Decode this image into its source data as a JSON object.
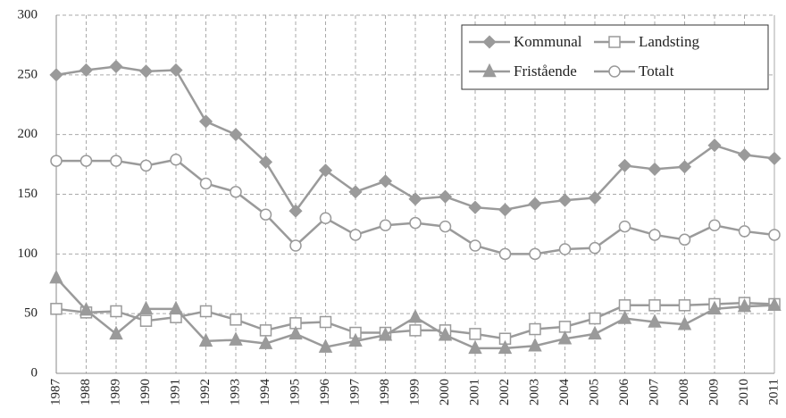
{
  "chart_data": {
    "type": "line",
    "categories": [
      "1987",
      "1988",
      "1989",
      "1990",
      "1991",
      "1992",
      "1993",
      "1994",
      "1995",
      "1996",
      "1997",
      "1998",
      "1999",
      "2000",
      "2001",
      "2002",
      "2003",
      "2004",
      "2005",
      "2006",
      "2007",
      "2008",
      "2009",
      "2010",
      "2011"
    ],
    "series": [
      {
        "name": "Kommunal",
        "color": "#9a9a9a",
        "marker": "diamond",
        "values": [
          250,
          254,
          257,
          253,
          254,
          211,
          200,
          177,
          136,
          170,
          152,
          161,
          146,
          148,
          139,
          137,
          142,
          145,
          147,
          174,
          171,
          173,
          191,
          183,
          180
        ]
      },
      {
        "name": "Landsting",
        "color": "#9a9a9a",
        "marker": "square",
        "values": [
          54,
          51,
          52,
          44,
          47,
          52,
          45,
          36,
          42,
          43,
          34,
          34,
          36,
          36,
          33,
          29,
          37,
          39,
          46,
          57,
          57,
          57,
          58,
          59,
          58
        ]
      },
      {
        "name": "Fristående",
        "color": "#9a9a9a",
        "marker": "triangle",
        "values": [
          80,
          53,
          33,
          54,
          54,
          27,
          28,
          25,
          33,
          22,
          27,
          32,
          47,
          32,
          21,
          21,
          23,
          29,
          33,
          46,
          43,
          41,
          54,
          56,
          57
        ]
      },
      {
        "name": "Totalt",
        "color": "#9a9a9a",
        "marker": "circle",
        "values": [
          178,
          178,
          178,
          174,
          179,
          159,
          152,
          133,
          107,
          130,
          116,
          124,
          126,
          123,
          107,
          100,
          100,
          104,
          105,
          123,
          116,
          112,
          124,
          119,
          116
        ]
      }
    ],
    "ylim": [
      0,
      300
    ],
    "yticks": [
      0,
      50,
      100,
      150,
      200,
      250,
      300
    ],
    "grid": true,
    "legend": "upper right"
  }
}
